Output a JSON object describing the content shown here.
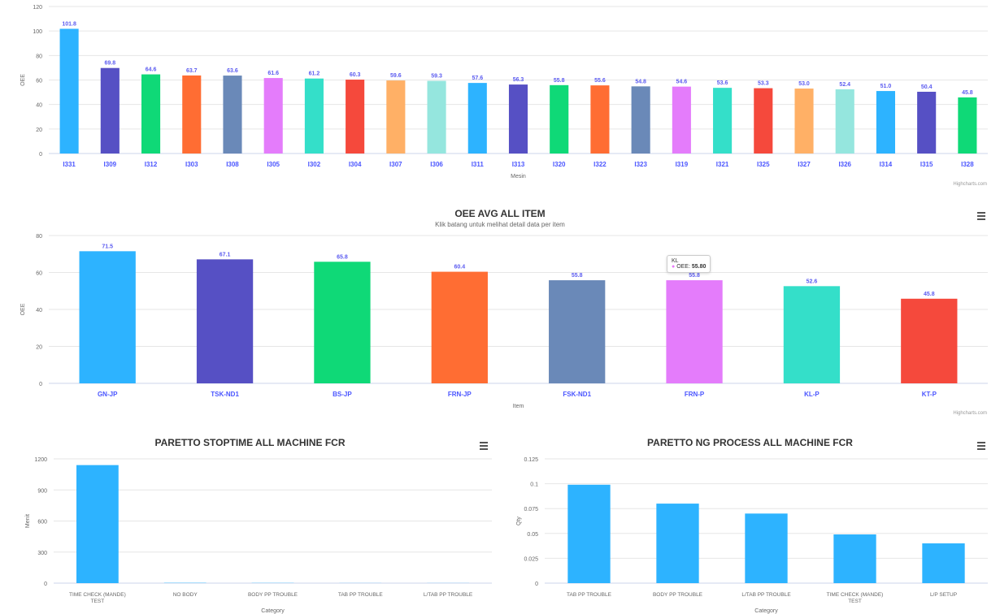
{
  "credits": "Highcharts.com",
  "charts": {
    "top": {
      "title": "",
      "subtitle": "",
      "xlabel": "Mesin",
      "ylabel": "OEE",
      "credits": "Highcharts.com"
    },
    "middle": {
      "title": "OEE AVG ALL ITEM",
      "subtitle": "Klik batang untuk melihat detail data per item",
      "xlabel": "Item",
      "ylabel": "OEE",
      "credits": "Highcharts.com",
      "tooltip": {
        "header": "KL",
        "series": "OEE",
        "value": "55.80"
      }
    },
    "bottom_left": {
      "title": "PARETTO STOPTIME ALL MACHINE FCR",
      "xlabel": "Category",
      "ylabel": "Menit"
    },
    "bottom_right": {
      "title": "PARETTO NG PROCESS ALL MACHINE FCR",
      "xlabel": "Category",
      "ylabel": "Qty"
    }
  },
  "colors": [
    "#2db3ff",
    "#5650c4",
    "#0fd977",
    "#ff6d33",
    "#6a89b8",
    "#e47cfb",
    "#34dfc9",
    "#f5493c",
    "#ffb066",
    "#95e6de"
  ],
  "chart_data": [
    {
      "type": "bar",
      "categories": [
        "I331",
        "I309",
        "I312",
        "I303",
        "I308",
        "I305",
        "I302",
        "I304",
        "I307",
        "I306",
        "I311",
        "I313",
        "I320",
        "I322",
        "I323",
        "I319",
        "I321",
        "I325",
        "I327",
        "I326",
        "I314",
        "I315",
        "I328"
      ],
      "values": [
        101.8,
        69.8,
        64.6,
        63.7,
        63.6,
        61.6,
        61.2,
        60.3,
        59.6,
        59.3,
        57.6,
        56.3,
        55.8,
        55.6,
        54.8,
        54.6,
        53.6,
        53.3,
        53.0,
        52.4,
        51.0,
        50.4,
        45.8
      ],
      "ylim": [
        0,
        120
      ],
      "yticks": [
        0,
        20,
        40,
        60,
        80,
        100,
        120
      ],
      "xlabel": "Mesin",
      "ylabel": "OEE"
    },
    {
      "type": "bar",
      "title": "OEE AVG ALL ITEM",
      "categories": [
        "GN-JP",
        "TSK-ND1",
        "BS-JP",
        "FRN-JP",
        "FSK-ND1",
        "FRN-P",
        "KL-P",
        "KT-P"
      ],
      "values": [
        71.5,
        67.1,
        65.8,
        60.4,
        55.8,
        55.8,
        52.6,
        45.8
      ],
      "ylim": [
        0,
        80
      ],
      "yticks": [
        0,
        20,
        40,
        60,
        80
      ],
      "xlabel": "Item",
      "ylabel": "OEE"
    },
    {
      "type": "bar",
      "title": "PARETTO STOPTIME ALL MACHINE FCR",
      "categories": [
        "TIME CHECK (MANDE) TEST",
        "NO BODY",
        "BODY PP TROUBLE",
        "TAB PP TROUBLE",
        "L/TAB PP TROUBLE"
      ],
      "values": [
        1140,
        3,
        2,
        1,
        1
      ],
      "ylim": [
        0,
        1200
      ],
      "yticks": [
        0,
        300,
        600,
        900,
        1200
      ],
      "xlabel": "Category",
      "ylabel": "Menit"
    },
    {
      "type": "bar",
      "title": "PARETTO NG PROCESS ALL MACHINE FCR",
      "categories": [
        "TAB PP TROUBLE",
        "BODY PP TROUBLE",
        "L/TAB PP TROUBLE",
        "TIME CHECK (MANDE) TEST",
        "L/P SETUP"
      ],
      "values": [
        0.099,
        0.08,
        0.07,
        0.049,
        0.04
      ],
      "ylim": [
        0,
        0.125
      ],
      "yticks": [
        0,
        0.025,
        0.05,
        0.075,
        0.1,
        0.125
      ],
      "xlabel": "Category",
      "ylabel": "Qty"
    }
  ]
}
